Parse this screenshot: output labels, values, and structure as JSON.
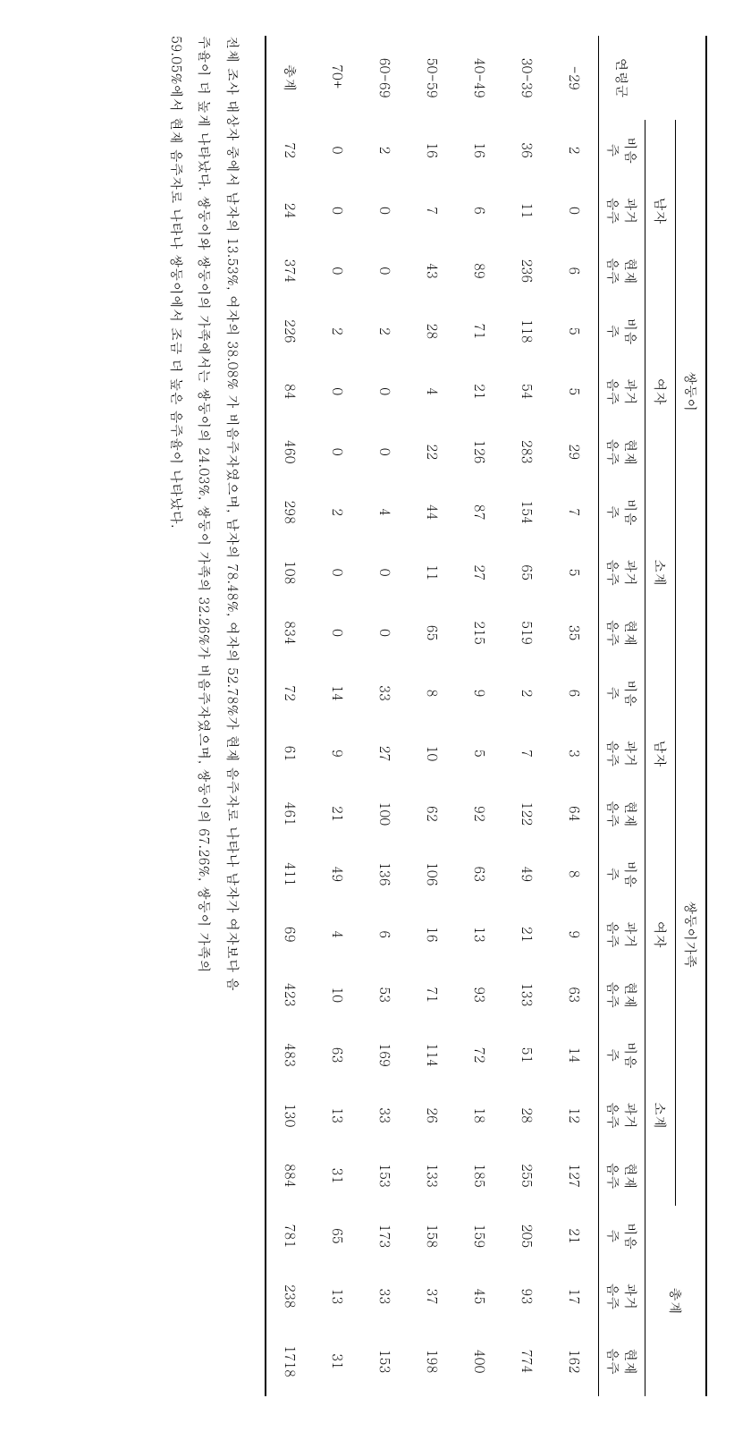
{
  "table": {
    "top_groups": [
      "쌍둥이",
      "쌍둥이가족",
      "총계"
    ],
    "sub_groups": [
      "남자",
      "여자",
      "소계",
      "남자",
      "여자",
      "소계"
    ],
    "metrics": [
      "비음\n주",
      "과거\n음주",
      "현재\n음주"
    ],
    "row_header": "연령군",
    "row_categories": [
      "-29",
      "30-39",
      "40-49",
      "50-59",
      "60-69",
      "70+",
      "총계"
    ],
    "rows": [
      [
        2,
        0,
        6,
        5,
        5,
        29,
        7,
        5,
        35,
        6,
        3,
        64,
        8,
        9,
        63,
        14,
        12,
        127,
        21,
        17,
        162
      ],
      [
        36,
        11,
        236,
        118,
        54,
        283,
        154,
        65,
        519,
        2,
        7,
        122,
        49,
        21,
        133,
        51,
        28,
        255,
        205,
        93,
        774
      ],
      [
        16,
        6,
        89,
        71,
        21,
        126,
        87,
        27,
        215,
        9,
        5,
        92,
        63,
        13,
        93,
        72,
        18,
        185,
        159,
        45,
        400
      ],
      [
        16,
        7,
        43,
        28,
        4,
        22,
        44,
        11,
        65,
        8,
        10,
        62,
        106,
        16,
        71,
        114,
        26,
        133,
        158,
        37,
        198
      ],
      [
        2,
        0,
        0,
        2,
        0,
        0,
        4,
        0,
        0,
        33,
        27,
        100,
        136,
        6,
        53,
        169,
        33,
        153,
        173,
        33,
        153
      ],
      [
        0,
        0,
        0,
        2,
        0,
        0,
        2,
        0,
        0,
        14,
        9,
        21,
        49,
        4,
        10,
        63,
        13,
        31,
        65,
        13,
        31
      ],
      [
        72,
        24,
        374,
        226,
        84,
        460,
        298,
        108,
        834,
        72,
        61,
        461,
        411,
        69,
        423,
        483,
        130,
        884,
        781,
        238,
        1718
      ]
    ]
  },
  "caption": {
    "l1": "전체 조사 대상자 중에서 남자의 13.53%, 여자의 38.08% 가 비음주자였으며, 남자의 78.48%, 여자의 52.78%가 현재 음주자로 나타나 남자가 여자보다 음",
    "l2": "주율이 더 높게 나타났다. 쌍둥이와 쌍둥이의 가족에서는 쌍둥이의 24.03%, 쌍둥이 가족의 32.26%가 비음주자였으며, 쌍둥이의 67.26%, 쌍둥이 가족의",
    "l3": "59.05%에서 현재 음주자로 나타나 쌍둥이에서 조금 더 높은 음주율이 나타났다."
  },
  "style": {
    "background_color": "#ffffff",
    "text_color": "#000000",
    "font_size_table": 15,
    "font_size_caption": 15,
    "rule_thick": 2,
    "rule_thin": 1
  }
}
